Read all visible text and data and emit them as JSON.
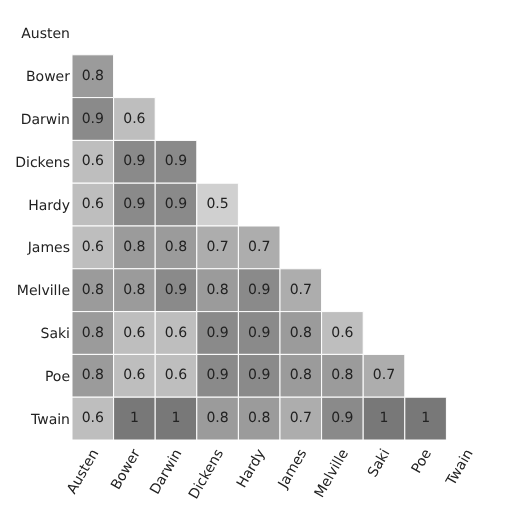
{
  "chart_data": {
    "type": "heatmap",
    "categories": [
      "Austen",
      "Bower",
      "Darwin",
      "Dickens",
      "Hardy",
      "James",
      "Melville",
      "Saki",
      "Poe",
      "Twain"
    ],
    "y_categories": [
      "Austen",
      "Bower",
      "Darwin",
      "Dickens",
      "Hardy",
      "James",
      "Melville",
      "Saki",
      "Poe",
      "Twain"
    ],
    "cells": [
      [
        null,
        null,
        null,
        null,
        null,
        null,
        null,
        null,
        null,
        null
      ],
      [
        0.8,
        null,
        null,
        null,
        null,
        null,
        null,
        null,
        null,
        null
      ],
      [
        0.9,
        0.6,
        null,
        null,
        null,
        null,
        null,
        null,
        null,
        null
      ],
      [
        0.6,
        0.9,
        0.9,
        null,
        null,
        null,
        null,
        null,
        null,
        null
      ],
      [
        0.6,
        0.9,
        0.9,
        0.5,
        null,
        null,
        null,
        null,
        null,
        null
      ],
      [
        0.6,
        0.8,
        0.8,
        0.7,
        0.7,
        null,
        null,
        null,
        null,
        null
      ],
      [
        0.8,
        0.8,
        0.9,
        0.8,
        0.9,
        0.7,
        null,
        null,
        null,
        null
      ],
      [
        0.8,
        0.6,
        0.6,
        0.9,
        0.9,
        0.8,
        0.6,
        null,
        null,
        null
      ],
      [
        0.8,
        0.6,
        0.6,
        0.9,
        0.9,
        0.8,
        0.8,
        0.7,
        null,
        null
      ],
      [
        0.6,
        1,
        1,
        0.8,
        0.8,
        0.7,
        0.9,
        1,
        1,
        null
      ]
    ],
    "data_labels": true
  }
}
